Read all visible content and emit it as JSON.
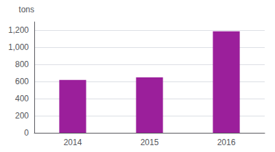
{
  "chart_data": {
    "type": "bar",
    "categories": [
      "2014",
      "2015",
      "2016"
    ],
    "values": [
      620,
      650,
      1190
    ],
    "color": "#9b1f9b",
    "ylabel": "tons",
    "ylim": [
      0,
      1300
    ],
    "yticks": [
      0,
      200,
      400,
      600,
      800,
      {
        "value": 1000,
        "label": "1,000"
      },
      {
        "value": 1200,
        "label": "1,200"
      }
    ],
    "grid": true
  }
}
